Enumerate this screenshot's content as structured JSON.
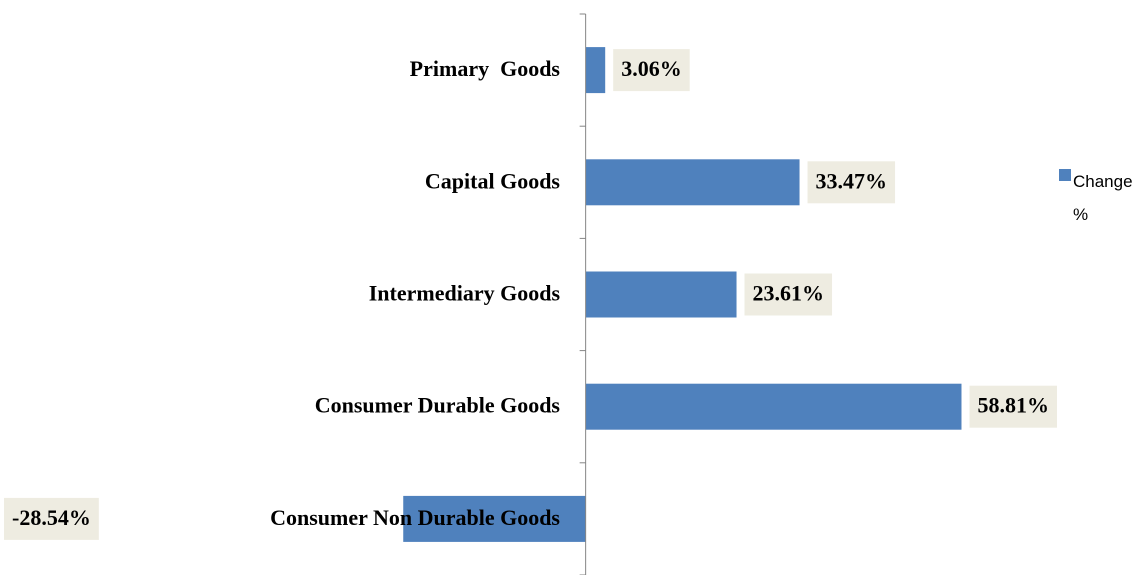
{
  "chart_data": {
    "type": "bar",
    "orientation": "horizontal",
    "categories": [
      "Primary  Goods",
      "Capital Goods",
      "Intermediary Goods",
      "Consumer Durable Goods",
      "Consumer Non Durable Goods"
    ],
    "series": [
      {
        "name": "Change %",
        "color": "#4f81bd",
        "values": [
          3.06,
          33.47,
          23.61,
          58.81,
          -28.54
        ],
        "value_labels": [
          "3.06%",
          "33.47%",
          "23.61%",
          "58.81%",
          "-28.54%"
        ]
      }
    ],
    "xlim": [
      -40,
      70
    ],
    "legend": "right"
  }
}
